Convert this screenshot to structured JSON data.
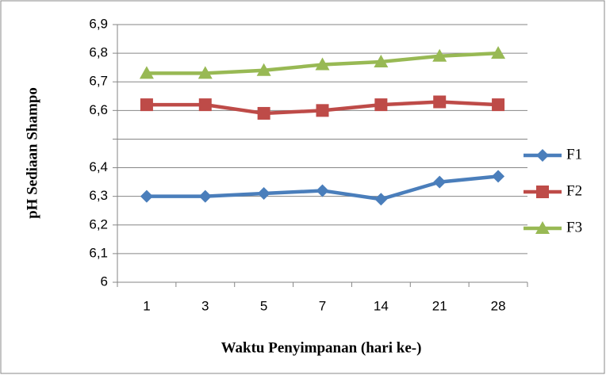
{
  "chart_data": {
    "type": "line",
    "xlabel": "Waktu Penyimpanan (hari ke-)",
    "ylabel": "pH Sediaan Shampo",
    "categories": [
      "1",
      "3",
      "5",
      "7",
      "14",
      "21",
      "28"
    ],
    "series": [
      {
        "name": "F1",
        "color": "#4a7ebb",
        "marker": "diamond",
        "values": [
          6.3,
          6.3,
          6.31,
          6.32,
          6.29,
          6.35,
          6.37
        ]
      },
      {
        "name": "F2",
        "color": "#be4b48",
        "marker": "square",
        "values": [
          6.62,
          6.62,
          6.59,
          6.6,
          6.62,
          6.63,
          6.62
        ]
      },
      {
        "name": "F3",
        "color": "#98b954",
        "marker": "triangle",
        "values": [
          6.73,
          6.73,
          6.74,
          6.76,
          6.77,
          6.79,
          6.8
        ]
      }
    ],
    "ylim": [
      6,
      6.9
    ],
    "yticks": [
      6,
      {
        "value": 6.1,
        "label": "6,1"
      },
      {
        "value": 6.2,
        "label": "6,2"
      },
      {
        "value": 6.3,
        "label": "6,3"
      },
      {
        "value": 6.4,
        "label": "6,4"
      },
      {
        "value": 6.5,
        "label": null
      },
      {
        "value": 6.6,
        "label": "6,6"
      },
      {
        "value": 6.7,
        "label": "6,7"
      },
      {
        "value": 6.8,
        "label": "6,8"
      },
      {
        "value": 6.9,
        "label": "6,9"
      }
    ],
    "grid": true,
    "legend": "right"
  }
}
